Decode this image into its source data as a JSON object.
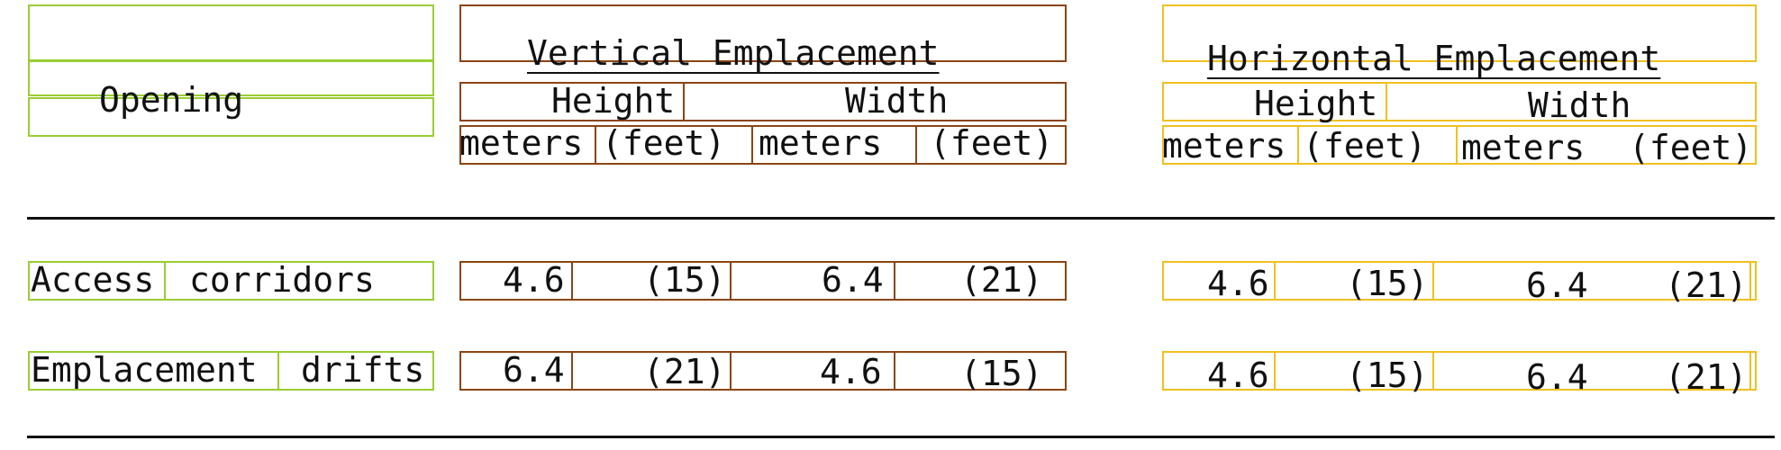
{
  "table": {
    "header": {
      "opening": "Opening",
      "vertical": "Vertical Emplacement",
      "horizontal": "Horizontal Emplacement",
      "height": "Height",
      "width": "Width",
      "meters": "meters",
      "feet": "(feet)"
    },
    "rows": [
      {
        "label_a": "Access",
        "label_b": "corridors",
        "v_h_m": "4.6",
        "v_h_ft": "(15)",
        "v_w_m": "6.4",
        "v_w_ft": "(21)",
        "h_h_m": "4.6",
        "h_h_ft": "(15)",
        "h_w_m": "6.4",
        "h_w_ft": "(21)"
      },
      {
        "label_a": "Emplacement",
        "label_b": "drifts",
        "v_h_m": "6.4",
        "v_h_ft": "(21)",
        "v_w_m": "4.6",
        "v_w_ft": "(15)",
        "h_h_m": "4.6",
        "h_h_ft": "(15)",
        "h_w_m": "6.4",
        "h_w_ft": "(21)"
      }
    ]
  },
  "colors": {
    "group_opening": "#9acd32",
    "group_vertical": "#8b4513",
    "group_horizontal": "#f0c020"
  }
}
